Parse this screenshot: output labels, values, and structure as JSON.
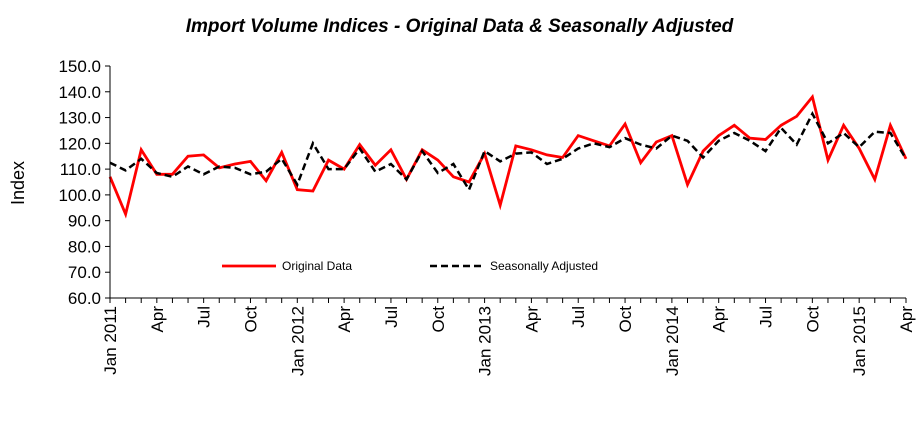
{
  "chart_data": {
    "type": "line",
    "title": "Import Volume Indices - Original Data & Seasonally Adjusted",
    "xlabel": "",
    "ylabel": "Index",
    "ylim": [
      60,
      150
    ],
    "yticks": [
      "60.0",
      "70.0",
      "80.0",
      "90.0",
      "100.0",
      "110.0",
      "120.0",
      "130.0",
      "140.0",
      "150.0"
    ],
    "xtick_labels": [
      "Jan 2011",
      "Apr",
      "Jul",
      "Oct",
      "Jan 2012",
      "Apr",
      "Jul",
      "Oct",
      "Jan 2013",
      "Apr",
      "Jul",
      "Oct",
      "Jan 2014",
      "Apr",
      "Jul",
      "Oct",
      "Jan 2015",
      "Apr"
    ],
    "legend_position": "bottom-center",
    "series": [
      {
        "name": "Original Data",
        "color": "#ff0000",
        "dash": "solid",
        "values": [
          107,
          92.5,
          117.5,
          108,
          108,
          115,
          115.5,
          110.5,
          112,
          113,
          105.5,
          116.5,
          102,
          101.5,
          113.5,
          110,
          119.5,
          111.5,
          117.5,
          106,
          117.5,
          113.5,
          107,
          105,
          116,
          96,
          119,
          117.5,
          115.5,
          114.5,
          123,
          121,
          119,
          127.5,
          112.5,
          120.5,
          123,
          104,
          117,
          123,
          127,
          122,
          121.5,
          127,
          130.5,
          138,
          113.5,
          127,
          118,
          106,
          127,
          114
        ]
      },
      {
        "name": "Seasonally Adjusted",
        "color": "#000000",
        "dash": "dashed",
        "values": [
          112.5,
          109.5,
          114,
          108.5,
          107,
          111,
          108,
          111,
          110.5,
          108,
          109,
          114,
          104,
          120,
          110,
          110,
          118,
          109,
          112,
          106,
          117,
          108.5,
          112,
          102,
          117,
          113,
          116,
          116.5,
          112,
          114,
          118,
          120,
          118.5,
          122,
          119.5,
          118,
          123,
          121,
          114.5,
          121,
          124,
          121,
          117,
          126,
          119.5,
          131.5,
          120,
          124,
          118.5,
          124.5,
          124,
          114
        ]
      }
    ]
  }
}
